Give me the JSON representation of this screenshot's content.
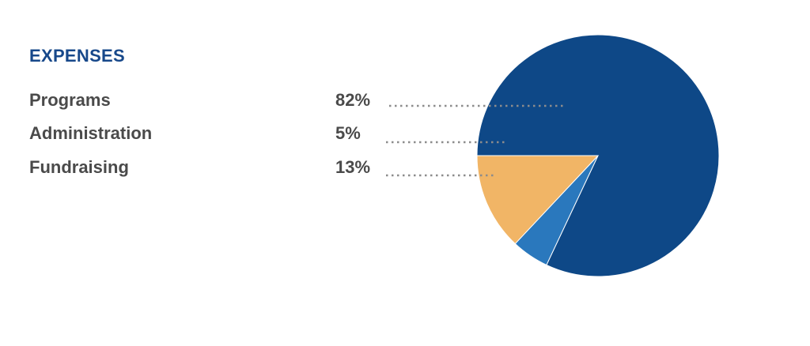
{
  "chart_data": {
    "type": "pie",
    "title": "EXPENSES",
    "categories": [
      "Programs",
      "Administration",
      "Fundraising"
    ],
    "values": [
      82,
      5,
      13
    ],
    "value_labels": [
      "82%",
      "5%",
      "13%"
    ],
    "colors": [
      "#0e4887",
      "#2a78bd",
      "#f1b566"
    ],
    "legend": "left",
    "leader_line_color": "#8c8c8c"
  }
}
